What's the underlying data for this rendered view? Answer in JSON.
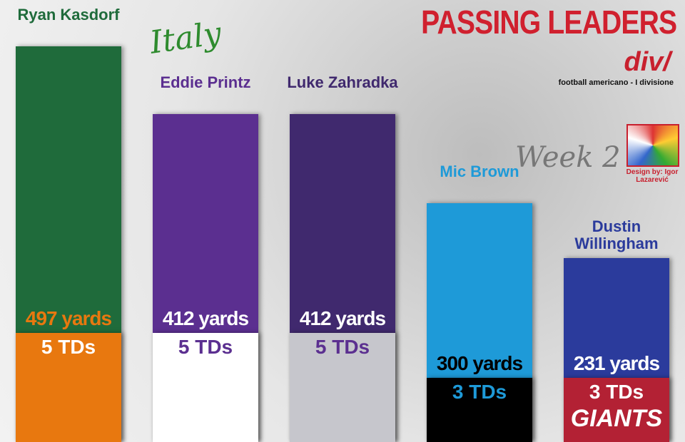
{
  "chart_data": {
    "type": "bar",
    "title": "PASSING LEADERS",
    "annotations": {
      "country": "Italy",
      "week": "Week 2",
      "logo": "div/",
      "league": "football americano - I divisione",
      "credit": "Design by: Igor Lazarević"
    },
    "categories": [
      "Ryan Kasdorf",
      "Eddie Printz",
      "Luke Zahradka",
      "Mic Brown",
      "Dustin Willingham"
    ],
    "values": [
      497,
      412,
      412,
      300,
      231
    ],
    "value_labels": [
      "497 yards",
      "412 yards",
      "412 yards",
      "300 yards",
      "231 yards"
    ],
    "td_labels": [
      "5 TDs",
      "5 TDs",
      "5 TDs",
      "3 TDs",
      "3 TDs"
    ],
    "team_labels": [
      null,
      null,
      null,
      null,
      "GIANTS"
    ],
    "colors": [
      "#1f6b3b",
      "#5b2f90",
      "#40296e",
      "#1e9ad8",
      "#2b3b9c"
    ],
    "base_colors": [
      "#e8780f",
      "#ffffff",
      "#c6c6cc",
      "#000000",
      "#b32134"
    ]
  }
}
